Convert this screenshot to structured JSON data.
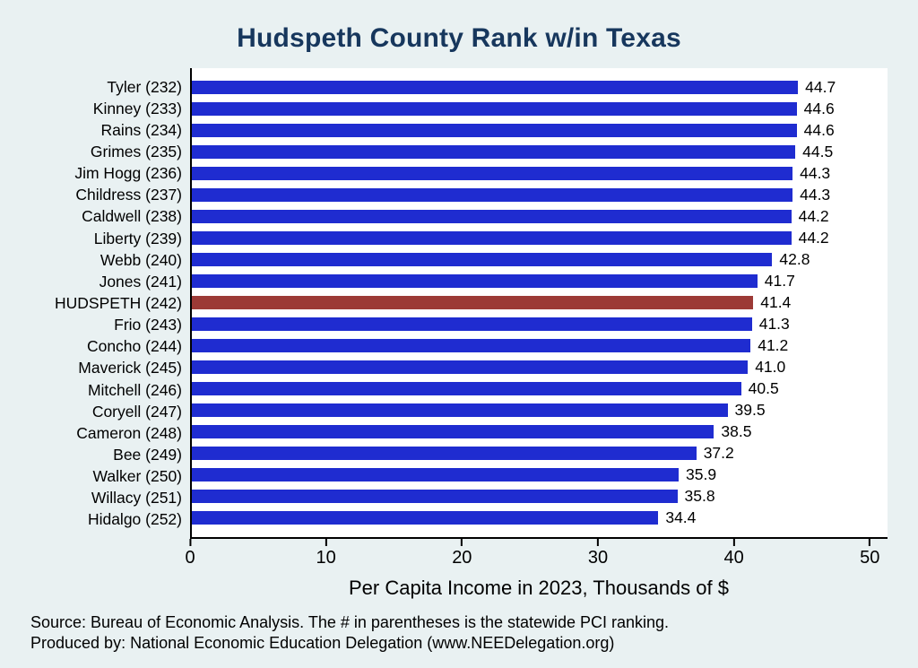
{
  "title": "Hudspeth County Rank w/in Texas",
  "chart_data": {
    "type": "bar",
    "orientation": "horizontal",
    "title": "Hudspeth County Rank w/in Texas",
    "categories": [
      "Tyler (232)",
      "Kinney (233)",
      "Rains (234)",
      "Grimes (235)",
      "Jim Hogg (236)",
      "Childress (237)",
      "Caldwell (238)",
      "Liberty (239)",
      "Webb (240)",
      "Jones (241)",
      "HUDSPETH (242)",
      "Frio (243)",
      "Concho (244)",
      "Maverick (245)",
      "Mitchell (246)",
      "Coryell (247)",
      "Cameron (248)",
      "Bee (249)",
      "Walker (250)",
      "Willacy (251)",
      "Hidalgo (252)"
    ],
    "values": [
      44.7,
      44.6,
      44.6,
      44.5,
      44.3,
      44.3,
      44.2,
      44.2,
      42.8,
      41.7,
      41.4,
      41.3,
      41.2,
      41.0,
      40.5,
      39.5,
      38.5,
      37.2,
      35.9,
      35.8,
      34.4
    ],
    "highlight_category": "HUDSPETH (242)",
    "highlight_index": 10,
    "bar_color": "#1f2cd0",
    "highlight_color": "#9c3a36",
    "xlabel": "Per Capita Income in 2023, Thousands of $",
    "xticks": [
      0,
      10,
      20,
      30,
      40,
      50
    ],
    "xlim": [
      0,
      51.3
    ],
    "grid": false,
    "legend": "none",
    "background_color": "#e9f1f2",
    "plot_background_color": "#ffffff",
    "title_color": "#17375d"
  },
  "footer": {
    "line1": "Source: Bureau of Economic Analysis. The # in parentheses is the statewide PCI ranking.",
    "line2": "Produced by: National Economic Education Delegation (www.NEEDelegation.org)"
  }
}
